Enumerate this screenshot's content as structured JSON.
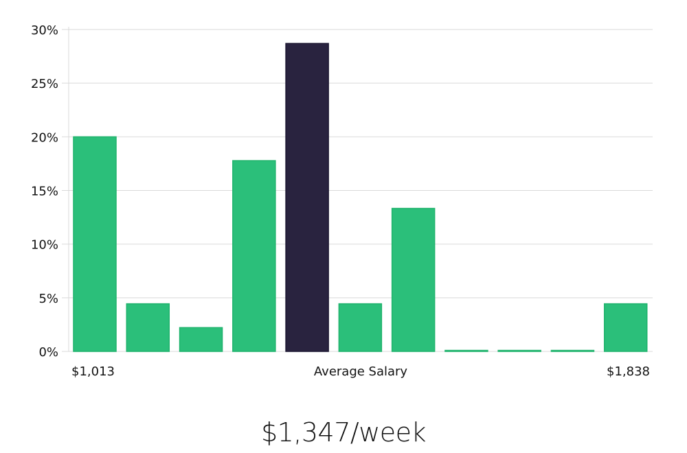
{
  "chart_data": {
    "type": "bar",
    "title": "",
    "xlabel": "Average Salary",
    "ylabel": "",
    "ylim": [
      0,
      30
    ],
    "yticks": [
      "0%",
      "5%",
      "10%",
      "15%",
      "20%",
      "25%",
      "30%"
    ],
    "ytick_values": [
      0,
      5,
      10,
      15,
      20,
      25,
      30
    ],
    "x_min_label": "$1,013",
    "x_max_label": "$1,838",
    "values": [
      20.0,
      4.44,
      2.22,
      17.78,
      28.7,
      4.44,
      13.33,
      0,
      0,
      0,
      4.44
    ],
    "highlight_index": 4,
    "grid": true,
    "colors": {
      "bar": "#2bbf7a",
      "bar_border": "#1fb36c",
      "highlight": "#29233f",
      "grid": "#d9d9d9"
    }
  },
  "summary": {
    "salary": "$1,347/week"
  }
}
